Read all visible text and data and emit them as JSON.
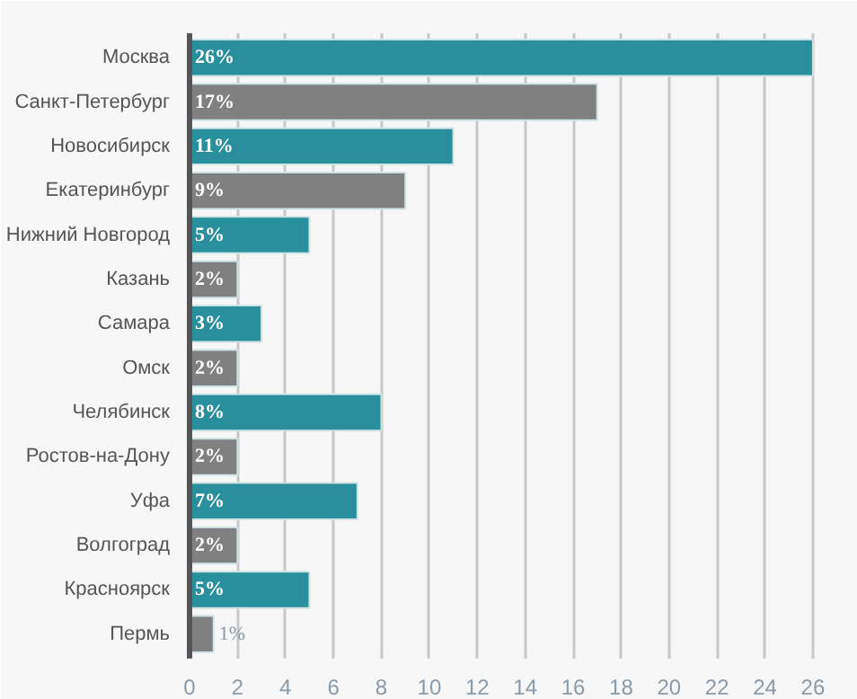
{
  "chart_data": {
    "type": "bar",
    "orientation": "horizontal",
    "categories": [
      "Москва",
      "Санкт-Петербург",
      "Новосибирск",
      "Екатеринбург",
      "Нижний Новгород",
      "Казань",
      "Самара",
      "Омск",
      "Челябинск",
      "Ростов-на-Дону",
      "Уфа",
      "Волгоград",
      "Красноярск",
      "Пермь"
    ],
    "values": [
      26,
      17,
      11,
      9,
      5,
      2,
      3,
      2,
      8,
      2,
      7,
      2,
      5,
      1
    ],
    "colors": [
      "#2a8f9c",
      "#808080",
      "#2a8f9c",
      "#808080",
      "#2a8f9c",
      "#808080",
      "#2a8f9c",
      "#808080",
      "#2a8f9c",
      "#808080",
      "#2a8f9c",
      "#808080",
      "#2a8f9c",
      "#808080"
    ],
    "value_labels": [
      "26%",
      "17%",
      "11%",
      "9%",
      "5%",
      "2%",
      "3%",
      "2%",
      "8%",
      "2%",
      "7%",
      "2%",
      "5%",
      "1%"
    ],
    "xlim": [
      0,
      27.5
    ],
    "xticks": [
      0,
      2,
      4,
      6,
      8,
      10,
      12,
      14,
      16,
      18,
      20,
      22,
      24,
      26
    ],
    "grid": "x"
  }
}
